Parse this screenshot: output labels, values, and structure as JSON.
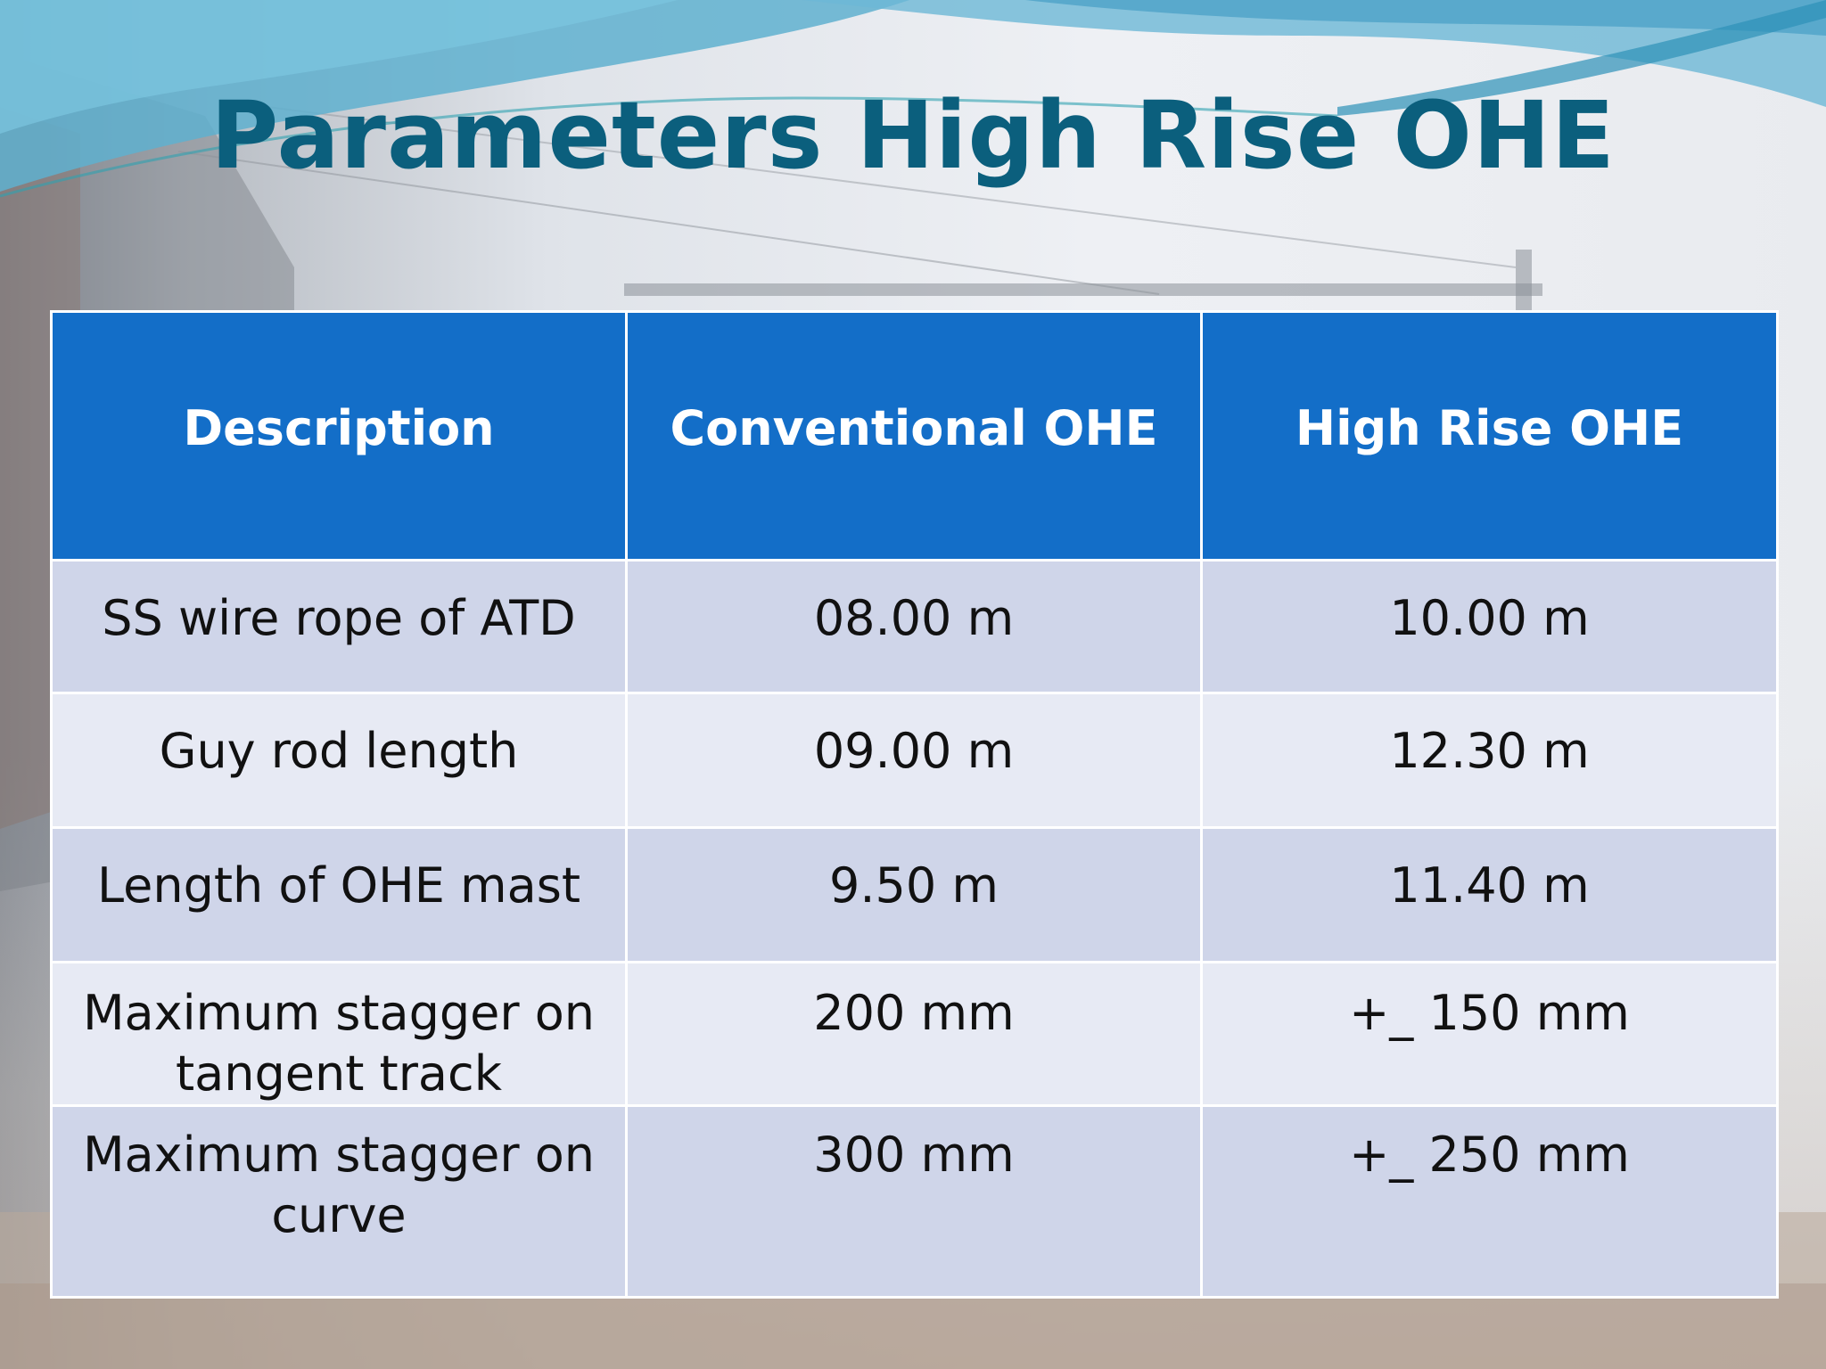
{
  "slide": {
    "title": "Parameters High Rise OHE"
  },
  "table": {
    "headers": [
      "Description",
      "Conventional OHE",
      "High Rise OHE"
    ],
    "rows": [
      [
        "SS wire rope of ATD",
        "08.00 m",
        "10.00 m"
      ],
      [
        "Guy rod length",
        "09.00 m",
        "12.30 m"
      ],
      [
        "Length of OHE mast",
        "9.50 m",
        "11.40 m"
      ],
      [
        "Maximum stagger on tangent track",
        "200 mm",
        "+_ 150 mm"
      ],
      [
        "Maximum stagger on curve",
        "300 mm",
        "+_ 250 mm"
      ]
    ]
  },
  "colors": {
    "title": "#0b5f7d",
    "header_bg": "#136ec8",
    "row_dark": "#cfd5e9",
    "row_light": "#e7eaf4"
  }
}
